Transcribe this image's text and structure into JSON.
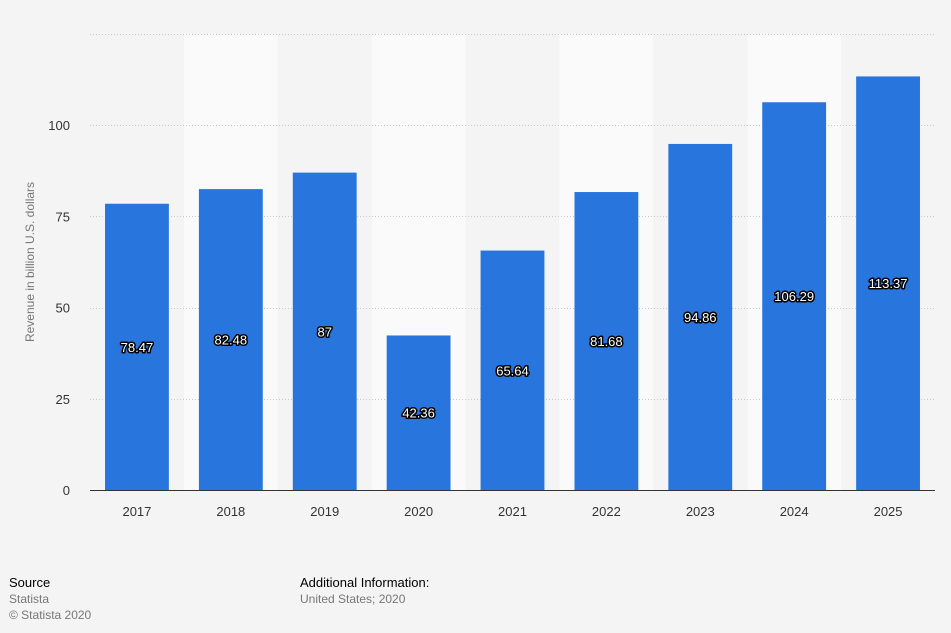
{
  "chart_data": {
    "type": "bar",
    "categories": [
      "2017",
      "2018",
      "2019",
      "2020",
      "2021",
      "2022",
      "2023",
      "2024",
      "2025"
    ],
    "values": [
      78.47,
      82.48,
      87,
      42.36,
      65.64,
      81.68,
      94.86,
      106.29,
      113.37
    ],
    "value_labels": [
      "78.47",
      "82.48",
      "87",
      "42.36",
      "65.64",
      "81.68",
      "94.86",
      "106.29",
      "113.37"
    ],
    "title": "",
    "xlabel": "",
    "ylabel": "Revenue in billion U.S. dollars",
    "ylim": [
      0,
      125
    ],
    "yticks": [
      0,
      25,
      50,
      75,
      100
    ],
    "grid": true,
    "bar_color": "#2876dd"
  },
  "footer": {
    "source_heading": "Source",
    "source_name": "Statista",
    "copyright": "© Statista 2020",
    "info_heading": "Additional Information:",
    "info_text": "United States; 2020"
  }
}
